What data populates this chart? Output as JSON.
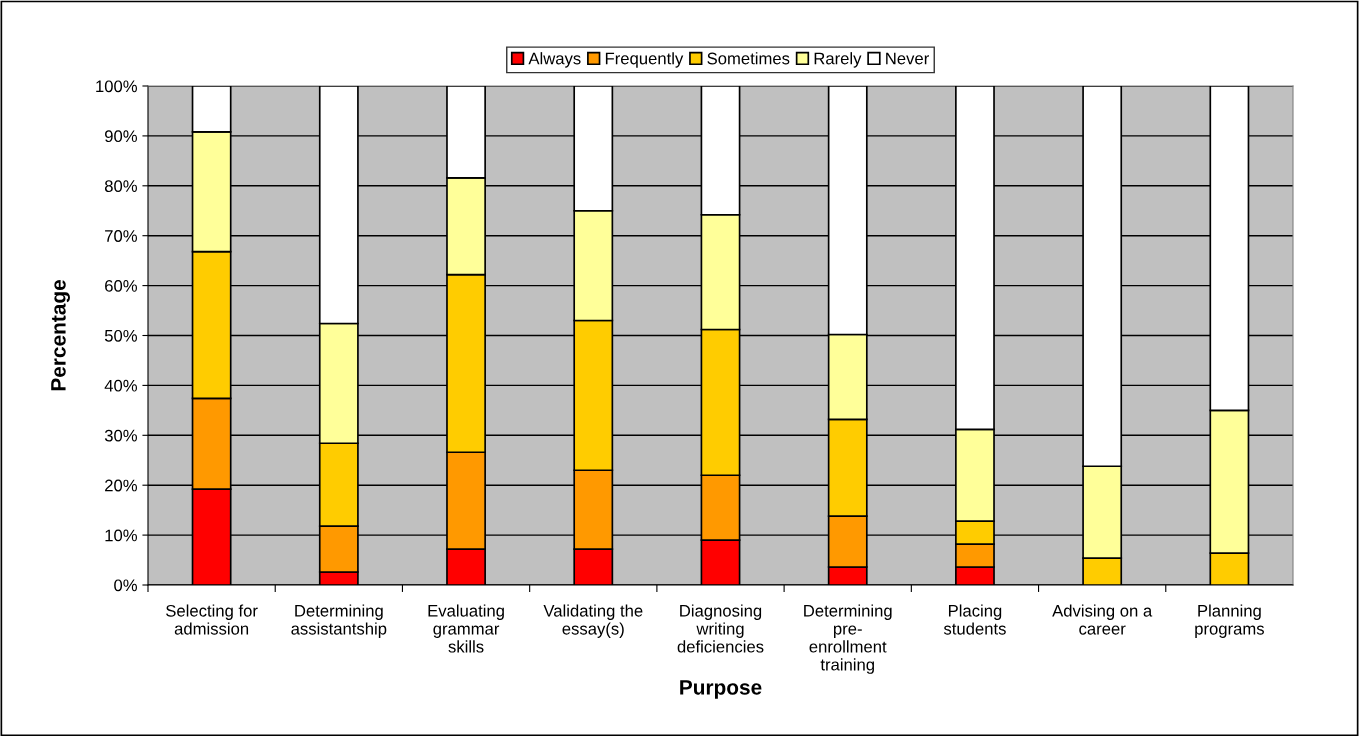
{
  "chart_data": {
    "type": "bar",
    "stacked": true,
    "xlabel": "Purpose",
    "ylabel": "Percentage",
    "categories": [
      "Selecting for\nadmission",
      "Determining\nassistantship",
      "Evaluating\ngrammar\nskills",
      "Validating the\nessay(s)",
      "Diagnosing\nwriting\ndeficiencies",
      "Determining\npre-\nenrollment\ntraining",
      "Placing\nstudents",
      "Advising on a\ncareer",
      "Planning\nprograms"
    ],
    "series": [
      {
        "name": "Always",
        "color": "#ff0000",
        "values": [
          19.2,
          2.6,
          7.2,
          7.2,
          9.0,
          3.6,
          3.6,
          0,
          0
        ]
      },
      {
        "name": "Frequently",
        "color": "#ff9900",
        "values": [
          18.2,
          9.2,
          19.4,
          15.8,
          13.0,
          10.2,
          4.6,
          0,
          0
        ]
      },
      {
        "name": "Sometimes",
        "color": "#ffcc00",
        "values": [
          29.4,
          16.6,
          35.6,
          30.0,
          29.2,
          19.4,
          4.6,
          5.4,
          6.4
        ]
      },
      {
        "name": "Rarely",
        "color": "#ffff99",
        "values": [
          24.0,
          24.0,
          19.4,
          22.0,
          23.0,
          17.0,
          18.4,
          18.4,
          28.6
        ]
      },
      {
        "name": "Never",
        "color": "#ffffff",
        "values": [
          9.2,
          47.6,
          18.4,
          25.0,
          25.8,
          49.8,
          68.8,
          76.2,
          65.0
        ]
      }
    ],
    "ylim": [
      0,
      100
    ],
    "yticks": [
      {
        "value": 0,
        "label": "0%"
      },
      {
        "value": 10,
        "label": "10%"
      },
      {
        "value": 20,
        "label": "20%"
      },
      {
        "value": 30,
        "label": "30%"
      },
      {
        "value": 40,
        "label": "40%"
      },
      {
        "value": 50,
        "label": "50%"
      },
      {
        "value": 60,
        "label": "60%"
      },
      {
        "value": 70,
        "label": "70%"
      },
      {
        "value": 80,
        "label": "80%"
      },
      {
        "value": 90,
        "label": "90%"
      },
      {
        "value": 100,
        "label": "100%"
      }
    ],
    "grid": "y",
    "legend": "top"
  }
}
